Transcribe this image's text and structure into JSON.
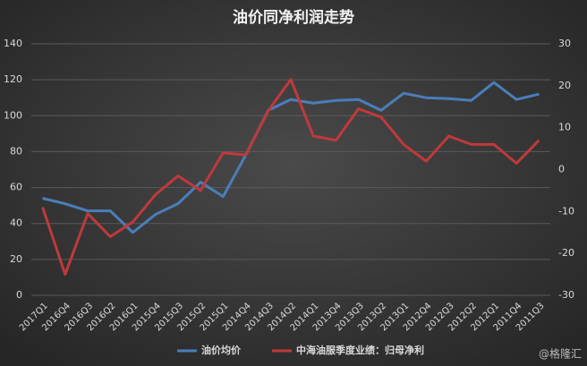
{
  "chart_data": {
    "type": "line",
    "title": "油价同净利润走势",
    "categories": [
      "2017Q1",
      "2016Q4",
      "2016Q3",
      "2016Q2",
      "2016Q1",
      "2015Q4",
      "2015Q3",
      "2015Q2",
      "2015Q1",
      "2014Q4",
      "2014Q3",
      "2014Q2",
      "2014Q1",
      "2013Q4",
      "2013Q3",
      "2013Q2",
      "2013Q1",
      "2012Q4",
      "2012Q3",
      "2012Q2",
      "2012Q1",
      "2011Q4",
      "2011Q3"
    ],
    "series": [
      {
        "name": "油价均价",
        "color": "#4a7ebb",
        "axis": "y",
        "values": [
          54,
          51,
          47,
          47,
          35,
          45,
          51,
          63,
          55,
          78,
          103,
          109,
          107,
          108.5,
          109,
          103,
          112.5,
          110,
          109.5,
          108.5,
          118.5,
          109,
          112
        ]
      },
      {
        "name": "中海油服季度业绩：归母净利",
        "color": "#c0393b",
        "axis": "y2",
        "values": [
          -9,
          -25,
          -10.5,
          -16,
          -12.5,
          -6,
          -1.5,
          -5,
          4,
          3.5,
          14,
          21.5,
          8,
          7,
          14.5,
          12.5,
          6,
          2,
          8,
          6,
          6,
          1.5,
          7
        ]
      }
    ],
    "ylim": [
      0,
      140
    ],
    "yticks": [
      0,
      20,
      40,
      60,
      80,
      100,
      120,
      140
    ],
    "y2lim": [
      -30,
      30
    ],
    "y2ticks": [
      -30,
      -20,
      -10,
      0,
      10,
      20,
      30
    ],
    "grid": true,
    "legend": "bottom",
    "watermark": "@格隆汇"
  }
}
